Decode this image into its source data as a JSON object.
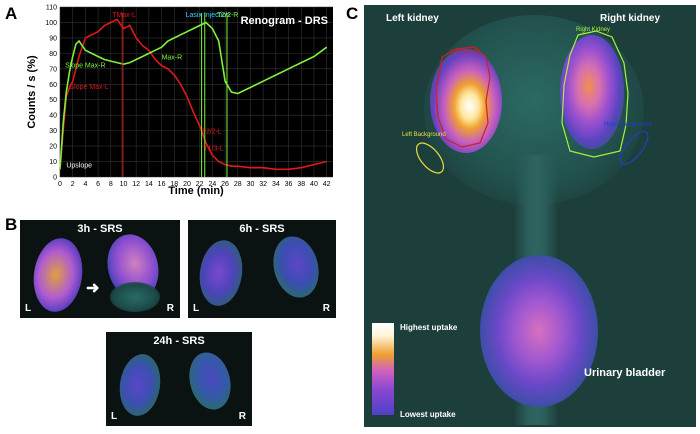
{
  "panel_letters": {
    "a": "A",
    "b": "B",
    "c": "C"
  },
  "chart_data": {
    "type": "line",
    "title": "Renogram - DRS",
    "xlabel": "Time (min)",
    "ylabel": "Counts / s (%)",
    "xlim": [
      0,
      43
    ],
    "ylim": [
      0,
      110
    ],
    "xticks": [
      0,
      2,
      4,
      6,
      8,
      10,
      12,
      14,
      16,
      18,
      20,
      22,
      24,
      26,
      28,
      30,
      32,
      34,
      36,
      38,
      40,
      42
    ],
    "yticks": [
      0,
      10,
      20,
      30,
      40,
      50,
      60,
      70,
      80,
      90,
      100,
      110
    ],
    "grid": true,
    "series": [
      {
        "color": "#e01818",
        "x": [
          0,
          0.5,
          1,
          1.5,
          2,
          2.5,
          3,
          4,
          5,
          6,
          7,
          8,
          9,
          10,
          11,
          12,
          13,
          14,
          15,
          16,
          17,
          18,
          19,
          20,
          21,
          22,
          23,
          24,
          25,
          26,
          27,
          28,
          30,
          32,
          34,
          36,
          38,
          40,
          42
        ],
        "y": [
          5,
          30,
          52,
          58,
          62,
          70,
          78,
          90,
          92,
          94,
          98,
          100,
          102,
          96,
          98,
          90,
          85,
          82,
          76,
          72,
          70,
          66,
          60,
          52,
          42,
          33,
          22,
          14,
          10,
          8,
          7,
          7,
          6,
          6,
          5,
          5,
          6,
          8,
          10
        ]
      },
      {
        "color": "#7ff040",
        "x": [
          0,
          0.5,
          1,
          1.5,
          2,
          2.5,
          3,
          4,
          5,
          6,
          7,
          8,
          9,
          10,
          11,
          12,
          13,
          14,
          15,
          16,
          17,
          18,
          19,
          20,
          21,
          22,
          23,
          24,
          25,
          26,
          27,
          28,
          30,
          32,
          34,
          36,
          38,
          40,
          42
        ],
        "y": [
          5,
          35,
          55,
          68,
          78,
          86,
          88,
          82,
          80,
          78,
          76,
          75,
          74,
          73,
          74,
          76,
          78,
          80,
          82,
          84,
          88,
          90,
          92,
          94,
          96,
          98,
          100,
          96,
          88,
          62,
          55,
          54,
          58,
          62,
          66,
          70,
          74,
          78,
          84
        ]
      }
    ],
    "markers": [
      {
        "x": 9.8,
        "color": "#e01818",
        "label": "TMax-L"
      },
      {
        "x": 22.3,
        "color": "#7ff040",
        "label": "Lasix Injection"
      },
      {
        "x": 22.8,
        "color": "#7ff040",
        "label": ""
      },
      {
        "x": 26.3,
        "color": "#7ff040",
        "label": "T2/2-R"
      }
    ],
    "annotations": [
      {
        "text": "Upslope",
        "x": 1.0,
        "y": 6,
        "color": "#ffffff"
      },
      {
        "text": "Slope Max-R",
        "x": 0.8,
        "y": 71,
        "color": "#7ff040"
      },
      {
        "text": "Slope Max-L",
        "x": 1.5,
        "y": 57,
        "color": "#e01818"
      },
      {
        "text": "Max-R",
        "x": 16.0,
        "y": 76,
        "color": "#7ff040"
      },
      {
        "text": "T2/2-L",
        "x": 22.3,
        "y": 28,
        "color": "#e01818"
      },
      {
        "text": "T1/3-L",
        "x": 22.6,
        "y": 17,
        "color": "#e01818"
      }
    ]
  },
  "panel_b": {
    "scans": [
      {
        "title": "3h - SRS",
        "left": "L",
        "right": "R"
      },
      {
        "title": "6h - SRS",
        "left": "L",
        "right": "R"
      },
      {
        "title": "24h - SRS",
        "left": "L",
        "right": "R"
      }
    ]
  },
  "panel_c": {
    "left_kidney": "Left kidney",
    "right_kidney": "Right kidney",
    "roi_left_kidney": "Left Kidney",
    "roi_right_kidney": "Right Kidney",
    "left_background": "Left Background",
    "right_background": "Right Background",
    "urinary_bladder": "Urinary bladder",
    "highest_uptake": "Highest uptake",
    "lowest_uptake": "Lowest uptake",
    "colors": {
      "roi_left_kidney": "#d02020",
      "roi_right_kidney": "#a8f040",
      "left_background": "#e8e040",
      "right_background": "#2040c0"
    }
  }
}
